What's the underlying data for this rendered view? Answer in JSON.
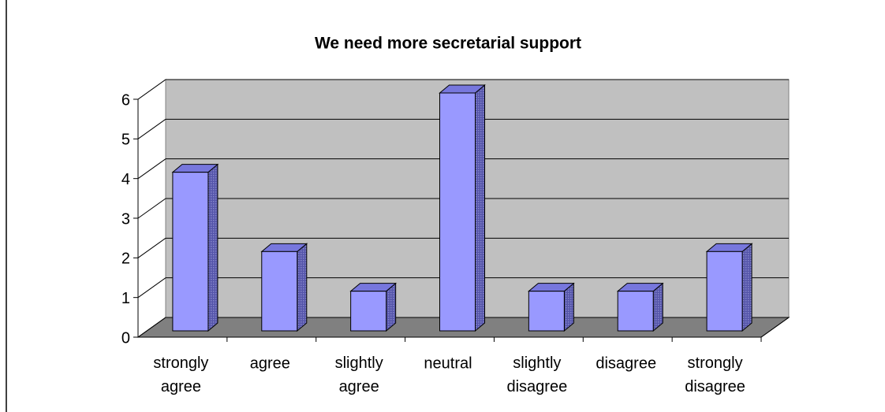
{
  "chart_data": {
    "type": "bar",
    "title": "We need more secretarial support",
    "categories": [
      "strongly agree",
      "agree",
      "slightly agree",
      "neutral",
      "slightly disagree",
      "disagree",
      "strongly disagree"
    ],
    "values": [
      4,
      2,
      1,
      6,
      1,
      1,
      2
    ],
    "color": "#9999ff",
    "ylim": [
      0,
      6
    ],
    "yticks": [
      0,
      1,
      2,
      3,
      4,
      5,
      6
    ],
    "grid": true
  }
}
